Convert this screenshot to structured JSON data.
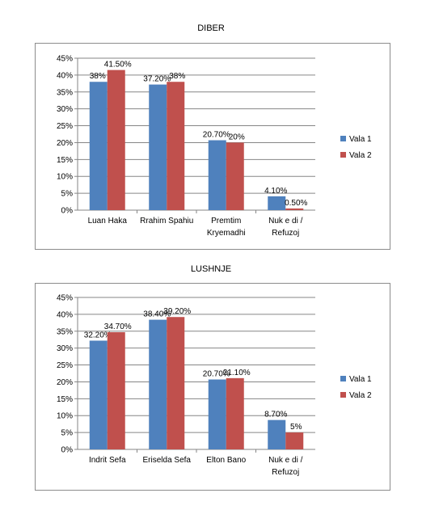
{
  "charts": [
    {
      "title": "DIBER"
    },
    {
      "title": "LUSHNJE"
    }
  ],
  "chart_data": [
    {
      "type": "bar",
      "title": "DIBER",
      "categories": [
        "Luan Haka",
        "Rrahim Spahiu",
        "Premtim Kryemadhi",
        "Nuk e di / Refuzoj"
      ],
      "category_lines": [
        [
          "Luan Haka"
        ],
        [
          "Rrahim Spahiu"
        ],
        [
          "Premtim",
          "Kryemadhi"
        ],
        [
          "Nuk e di /",
          "Refuzoj"
        ]
      ],
      "series": [
        {
          "name": "Vala 1",
          "color": "#4f81bd",
          "values": [
            38,
            37.2,
            20.7,
            4.1
          ],
          "labels": [
            "38%",
            "37.20%",
            "20.70%",
            "4.10%"
          ]
        },
        {
          "name": "Vala 2",
          "color": "#c0504d",
          "values": [
            41.5,
            38,
            20,
            0.5
          ],
          "labels": [
            "41.50%",
            "38%",
            "20%",
            "0.50%"
          ]
        }
      ],
      "y_ticks": [
        "0%",
        "5%",
        "10%",
        "15%",
        "20%",
        "25%",
        "30%",
        "35%",
        "40%",
        "45%"
      ],
      "ylim": [
        0,
        45
      ],
      "grid": true,
      "legend": "right"
    },
    {
      "type": "bar",
      "title": "LUSHNJE",
      "categories": [
        "Indrit Sefa",
        "Eriselda Sefa",
        "Elton Bano",
        "Nuk e di / Refuzoj"
      ],
      "category_lines": [
        [
          "Indrit Sefa"
        ],
        [
          "Eriselda Sefa"
        ],
        [
          "Elton Bano"
        ],
        [
          "Nuk e di /",
          "Refuzoj"
        ]
      ],
      "series": [
        {
          "name": "Vala 1",
          "color": "#4f81bd",
          "values": [
            32.2,
            38.4,
            20.7,
            8.7
          ],
          "labels": [
            "32.20%",
            "38.40%",
            "20.70%",
            "8.70%"
          ]
        },
        {
          "name": "Vala 2",
          "color": "#c0504d",
          "values": [
            34.7,
            39.2,
            21.1,
            5
          ],
          "labels": [
            "34.70%",
            "39.20%",
            "21.10%",
            "5%"
          ]
        }
      ],
      "y_ticks": [
        "0%",
        "5%",
        "10%",
        "15%",
        "20%",
        "25%",
        "30%",
        "35%",
        "40%",
        "45%"
      ],
      "ylim": [
        0,
        45
      ],
      "grid": true,
      "legend": "right"
    }
  ]
}
